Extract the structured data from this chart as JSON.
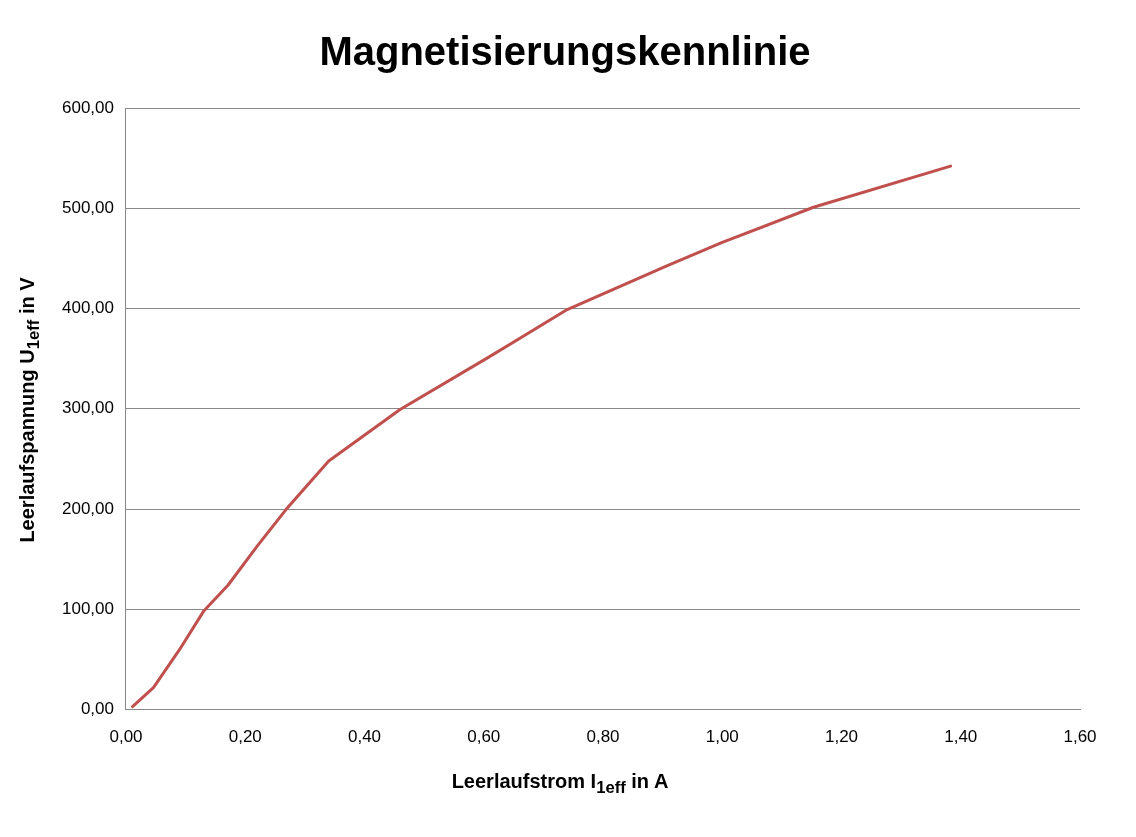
{
  "chart_data": {
    "type": "line",
    "title": "Magnetisierungskennlinie",
    "xlabel": "Leerlaufstrom I$_{1eff}$ in A",
    "ylabel": "Leerlaufspannung U$_{1eff}$ in V",
    "x": [
      0.011,
      0.046,
      0.09,
      0.13,
      0.171,
      0.22,
      0.269,
      0.34,
      0.459,
      0.607,
      0.74,
      0.909,
      1.0,
      1.153,
      1.383
    ],
    "series": [
      {
        "color": "#c0504d",
        "values": [
          3,
          22,
          60,
          98,
          124,
          163,
          200,
          248,
          299,
          351,
          399,
          443,
          466,
          501,
          542
        ]
      }
    ],
    "xlim": [
      0,
      1.6
    ],
    "ylim": [
      0,
      600
    ],
    "xticks": [
      {
        "value": 0,
        "label": "0,00"
      },
      {
        "value": 0.2,
        "label": "0,20"
      },
      {
        "value": 0.4,
        "label": "0,40"
      },
      {
        "value": 0.6,
        "label": "0,60"
      },
      {
        "value": 0.8,
        "label": "0,80"
      },
      {
        "value": 1.0,
        "label": "1,00"
      },
      {
        "value": 1.2,
        "label": "1,20"
      },
      {
        "value": 1.4,
        "label": "1,40"
      },
      {
        "value": 1.6,
        "label": "1,60"
      }
    ],
    "yticks": [
      {
        "value": 0,
        "label": "0,00"
      },
      {
        "value": 100,
        "label": "100,00"
      },
      {
        "value": 200,
        "label": "200,00"
      },
      {
        "value": 300,
        "label": "300,00"
      },
      {
        "value": 400,
        "label": "400,00"
      },
      {
        "value": 500,
        "label": "500,00"
      },
      {
        "value": 600,
        "label": "600,00"
      }
    ],
    "grid": "y",
    "legend": false,
    "marker": "none",
    "line_style": "solid"
  }
}
